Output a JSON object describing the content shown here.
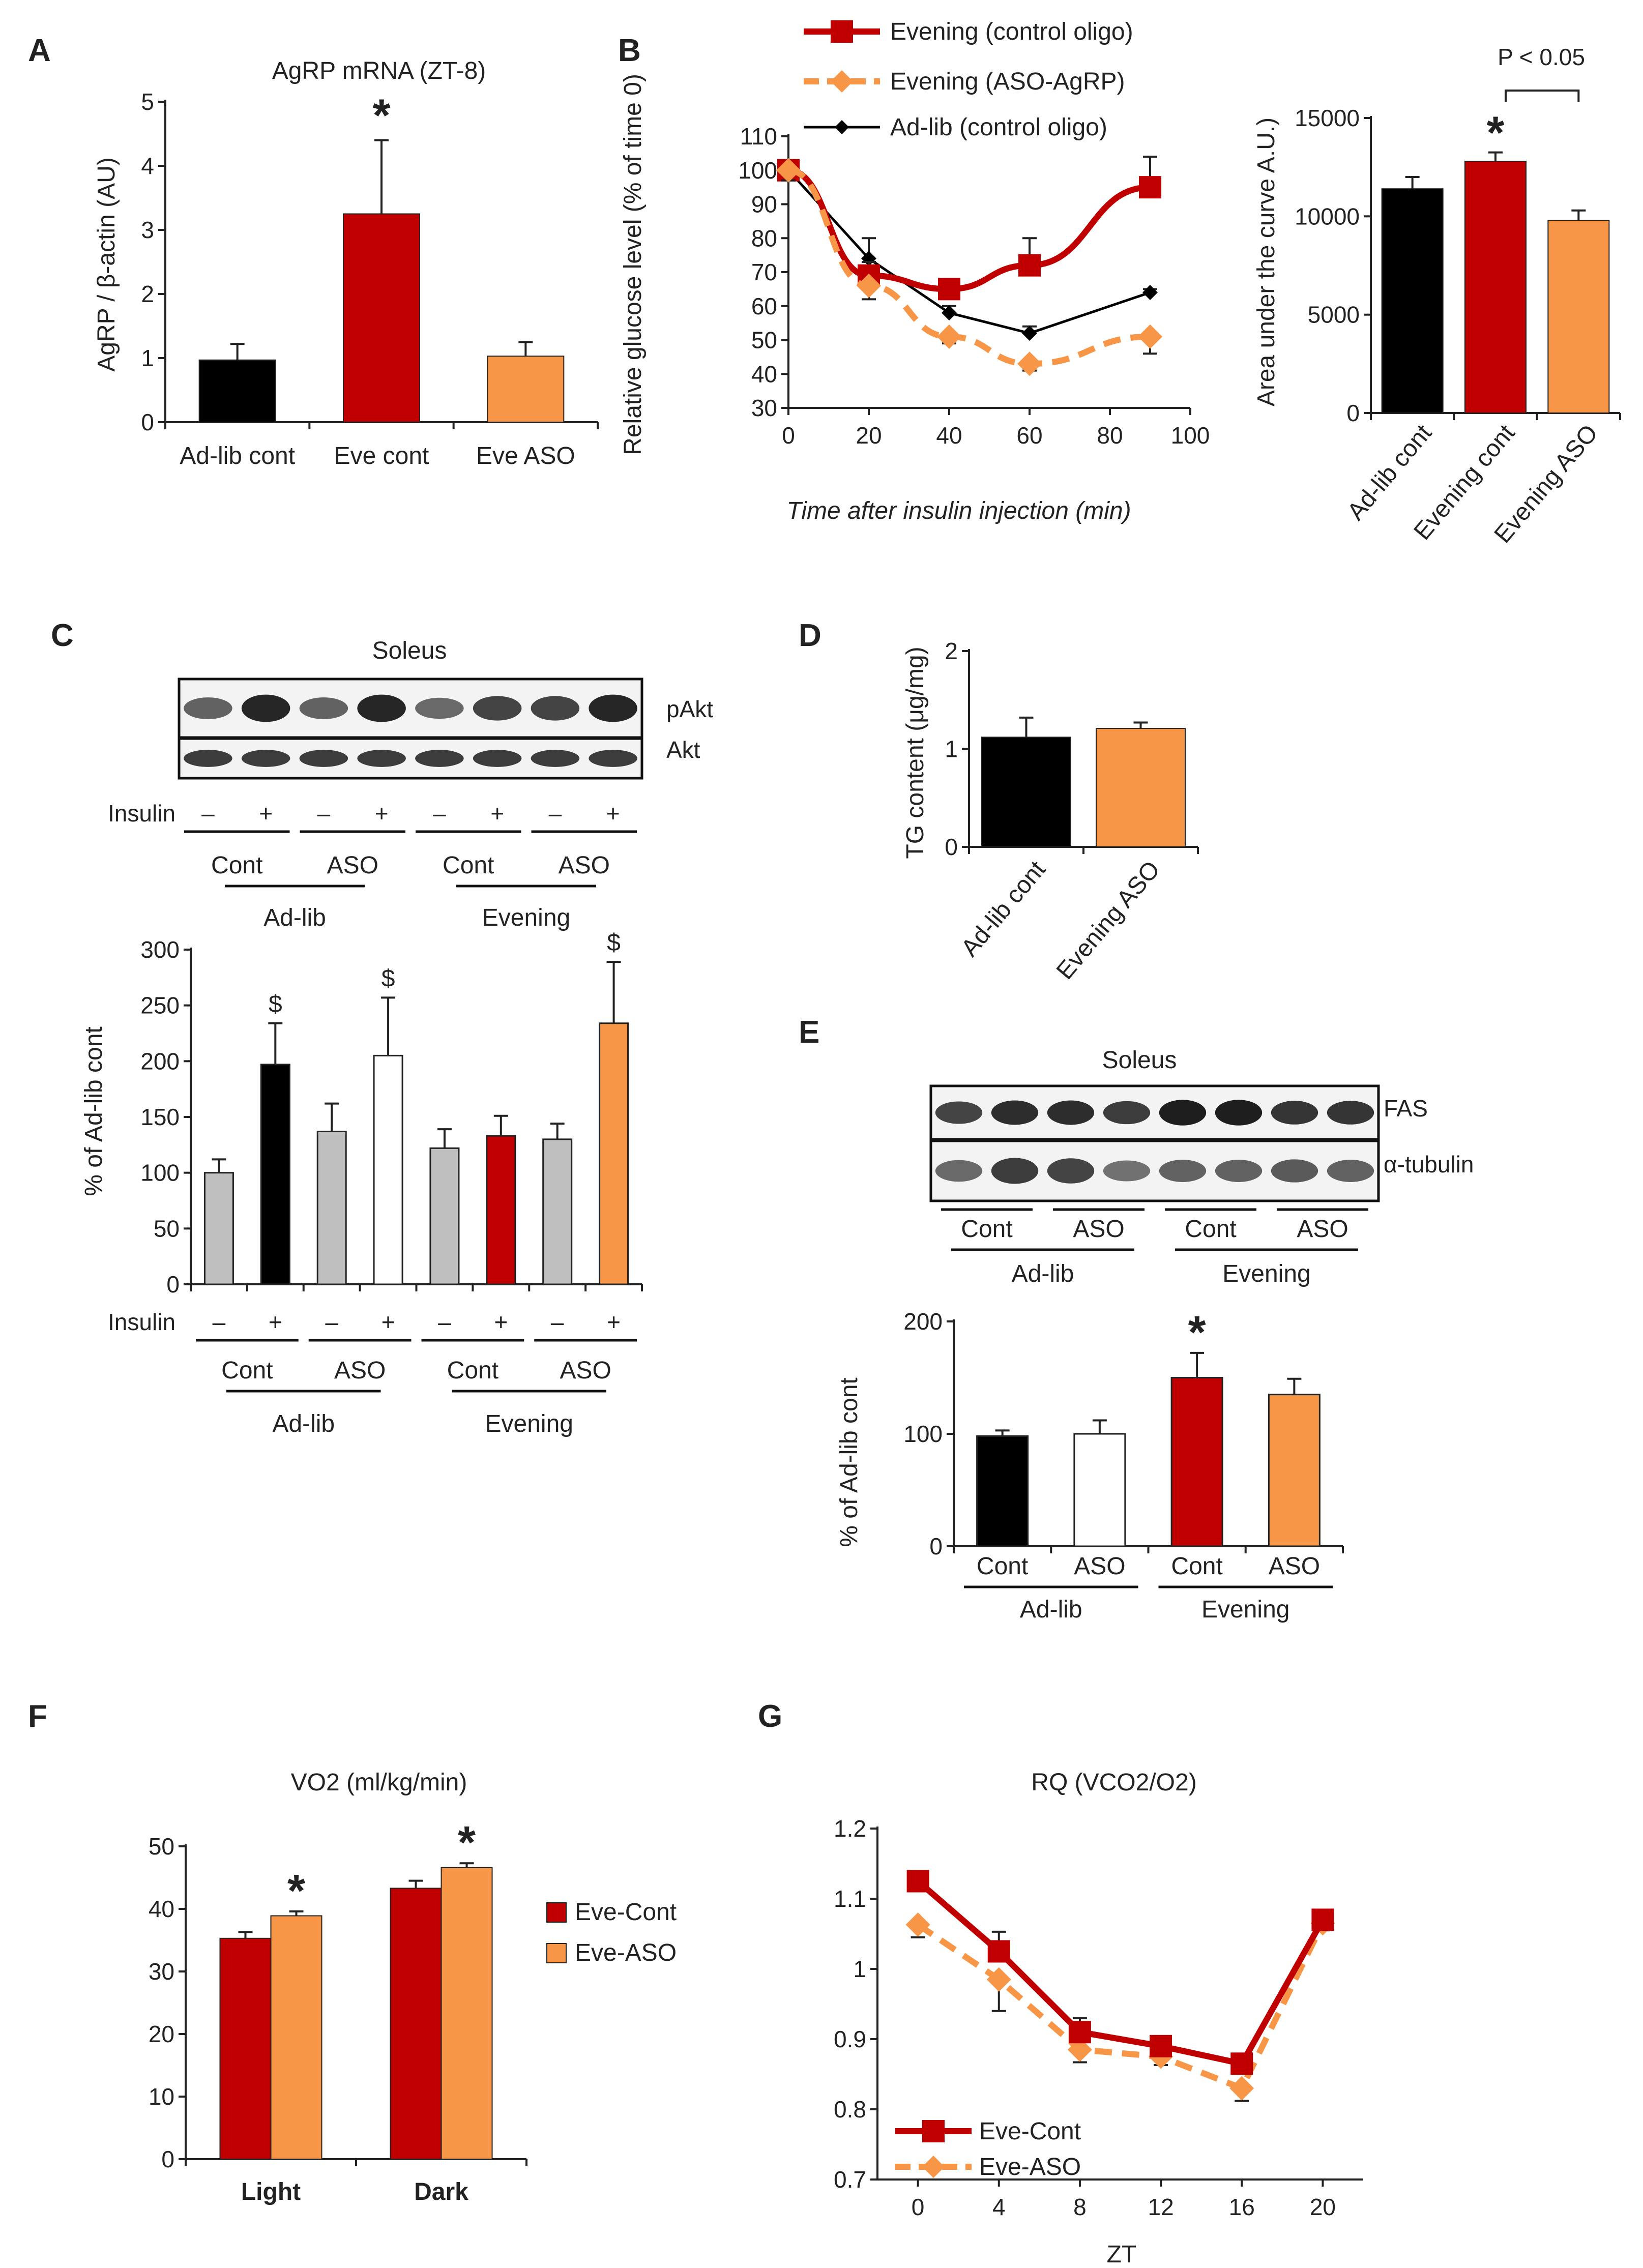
{
  "chart_data": [
    {
      "panel": "A",
      "type": "bar",
      "title": "AgRP mRNA (ZT-8)",
      "ylabel": "AgRP / β-actin (AU)",
      "ylim": [
        0,
        5
      ],
      "yticks": [
        "0",
        "1",
        "2",
        "3",
        "4",
        "5"
      ],
      "categories": [
        "Ad-lib cont",
        "Eve cont",
        "Eve ASO"
      ],
      "values": [
        0.97,
        3.25,
        1.03
      ],
      "errors": [
        0.25,
        1.15,
        0.22
      ],
      "colors": [
        "#000000",
        "#c00000",
        "#f79646"
      ],
      "annotations": [
        "",
        "*",
        ""
      ]
    },
    {
      "panel": "B",
      "type": "line",
      "xlabel": "Time after insulin injection (min)",
      "ylabel": "Relative glucose level (% of time 0)",
      "xlim": [
        0,
        100
      ],
      "ylim": [
        30,
        110
      ],
      "xticks": [
        "0",
        "20",
        "40",
        "60",
        "80",
        "100"
      ],
      "yticks": [
        "30",
        "40",
        "50",
        "60",
        "70",
        "80",
        "90",
        "100",
        "110"
      ],
      "x": [
        0,
        20,
        40,
        60,
        90
      ],
      "series": [
        {
          "name": "Evening (control oligo)",
          "color": "#c00000",
          "values": [
            100,
            69,
            65,
            72,
            95
          ],
          "errors": [
            3,
            4,
            2,
            8,
            9
          ]
        },
        {
          "name": "Evening (ASO-AgRP)",
          "color": "#f79646",
          "values": [
            100,
            66,
            51,
            43,
            51
          ],
          "errors": [
            3,
            4,
            2,
            2,
            5
          ]
        },
        {
          "name": "Ad-lib (control oligo)",
          "color": "#000000",
          "values": [
            100,
            74,
            58,
            52,
            64
          ],
          "errors": [
            3,
            6,
            2,
            2,
            1
          ]
        }
      ]
    },
    {
      "panel": "B-inset",
      "type": "bar",
      "ylabel": "Area under the curve A.U.)",
      "ylim": [
        0,
        15000
      ],
      "yticks": [
        "0",
        "5000",
        "10000",
        "15000"
      ],
      "categories": [
        "Ad-lib cont",
        "Evening cont",
        "Evening ASO"
      ],
      "values": [
        11400,
        12800,
        9800
      ],
      "errors": [
        600,
        450,
        500
      ],
      "colors": [
        "#000000",
        "#c00000",
        "#f79646"
      ],
      "annotations": [
        "",
        "*",
        ""
      ],
      "bracket": "P < 0.05"
    },
    {
      "panel": "C",
      "type": "bar",
      "title": "Soleus",
      "ylabel": "% of Ad-lib cont",
      "ylim": [
        0,
        300
      ],
      "yticks": [
        "0",
        "50",
        "100",
        "150",
        "200",
        "250",
        "300"
      ],
      "categories": [
        "–",
        "+",
        "–",
        "+",
        "–",
        "+",
        "–",
        "+"
      ],
      "values": [
        100,
        197,
        137,
        205,
        122,
        133,
        130,
        234
      ],
      "errors": [
        12,
        37,
        25,
        52,
        17,
        18,
        14,
        55
      ],
      "colors": [
        "#bfbfbf",
        "#000000",
        "#bfbfbf",
        "#ffffff",
        "#bfbfbf",
        "#c00000",
        "#bfbfbf",
        "#f79646"
      ],
      "annotations": [
        "",
        "$",
        "",
        "$",
        "",
        "",
        "",
        "$"
      ],
      "row_label": "Insulin",
      "subgroups": [
        "Cont",
        "ASO",
        "Cont",
        "ASO"
      ],
      "groups": [
        "Ad-lib",
        "Evening"
      ],
      "blot_bands": [
        "pAkt",
        "Akt"
      ]
    },
    {
      "panel": "D",
      "type": "bar",
      "ylabel": "TG content (μg/mg)",
      "ylim": [
        0,
        2
      ],
      "yticks": [
        "0",
        "1",
        "2"
      ],
      "categories": [
        "Ad-lib cont",
        "Evening ASO"
      ],
      "values": [
        1.12,
        1.21
      ],
      "errors": [
        0.2,
        0.06
      ],
      "colors": [
        "#000000",
        "#f79646"
      ]
    },
    {
      "panel": "E",
      "type": "bar",
      "title": "Soleus",
      "ylabel": "% of Ad-lib cont",
      "ylim": [
        0,
        200
      ],
      "yticks": [
        "0",
        "100",
        "200"
      ],
      "categories": [
        "Cont",
        "ASO",
        "Cont",
        "ASO"
      ],
      "values": [
        98,
        100,
        150,
        135
      ],
      "errors": [
        5,
        12,
        22,
        14
      ],
      "colors": [
        "#000000",
        "#ffffff",
        "#c00000",
        "#f79646"
      ],
      "annotations": [
        "",
        "",
        "*",
        ""
      ],
      "groups": [
        "Ad-lib",
        "Evening"
      ],
      "blot_bands": [
        "FAS",
        "α-tubulin"
      ]
    },
    {
      "panel": "F",
      "type": "bar",
      "title": "VO2 (ml/kg/min)",
      "ylim": [
        0,
        50
      ],
      "yticks": [
        "0",
        "10",
        "20",
        "30",
        "40",
        "50"
      ],
      "categories": [
        "Light",
        "Dark"
      ],
      "series": [
        {
          "name": "Eve-Cont",
          "color": "#c00000",
          "values": [
            35.3,
            43.3
          ],
          "errors": [
            1.0,
            1.2
          ]
        },
        {
          "name": "Eve-ASO",
          "color": "#f79646",
          "values": [
            38.9,
            46.6
          ],
          "errors": [
            0.7,
            0.7
          ]
        }
      ],
      "annotations": [
        "*",
        "*"
      ]
    },
    {
      "panel": "G",
      "type": "line",
      "title": "RQ (VCO2/O2)",
      "xlabel": "ZT",
      "xlim": [
        -2,
        22
      ],
      "ylim": [
        0.7,
        1.2
      ],
      "xticks": [
        "0",
        "4",
        "8",
        "12",
        "16",
        "20"
      ],
      "yticks": [
        "0.7",
        "0.8",
        "0.9",
        "1",
        "1.1",
        "1.2"
      ],
      "x": [
        0,
        4,
        8,
        12,
        16,
        20
      ],
      "series": [
        {
          "name": "Eve-Cont",
          "color": "#c00000",
          "values": [
            1.125,
            1.025,
            0.91,
            0.89,
            0.865,
            1.07
          ],
          "errors": [
            0.008,
            0.028,
            0.02,
            0.01,
            0.01,
            0.01
          ]
        },
        {
          "name": "Eve-ASO",
          "color": "#f79646",
          "values": [
            1.063,
            0.985,
            0.885,
            0.875,
            0.83,
            1.065
          ],
          "errors": [
            0.018,
            0.045,
            0.018,
            0.012,
            0.018,
            0.01
          ]
        }
      ]
    }
  ],
  "panel_letters": [
    "A",
    "B",
    "C",
    "D",
    "E",
    "F",
    "G"
  ]
}
